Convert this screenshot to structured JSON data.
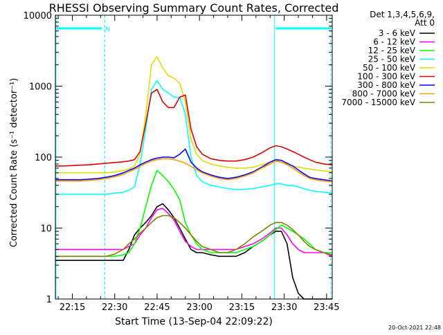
{
  "chart_data": {
    "type": "line",
    "title": "RHESSI Observing Summary Count Rates, Corrected",
    "xlabel": "Start Time (13-Sep-04 22:09:22)",
    "ylabel": "Corrected Count Rate (s⁻¹ detector⁻¹)",
    "y_scale": "log",
    "ylim": [
      1,
      10000
    ],
    "xlim": [
      "22:09",
      "23:47"
    ],
    "x_ticks": [
      "22:15",
      "22:30",
      "22:45",
      "23:00",
      "23:15",
      "23:30",
      "23:45"
    ],
    "y_ticks": [
      "1",
      "10",
      "100",
      "1000",
      "10000"
    ],
    "grid": false,
    "legend_header": [
      "Det 1,3,4,5,6,9,",
      "Att 0"
    ],
    "legend_position": "right",
    "footer_timestamp": "20-Oct-2021 22:48",
    "night_marker_label": "N",
    "x_minutes": [
      0,
      3,
      6,
      9,
      12,
      15,
      18,
      21,
      24,
      26,
      28,
      30,
      32,
      34,
      36,
      38,
      40,
      42,
      44,
      46,
      48,
      50,
      52,
      55,
      58,
      61,
      64,
      67,
      70,
      73,
      76,
      78,
      80,
      82,
      84,
      86,
      88,
      90,
      92,
      95,
      98
    ],
    "series": [
      {
        "name": "3 - 6 keV",
        "color": "#000000",
        "values": [
          3.5,
          3.5,
          3.5,
          3.5,
          3.5,
          3.5,
          3.5,
          3.5,
          3.5,
          5,
          8,
          10,
          12,
          15,
          20,
          22,
          18,
          14,
          10,
          7,
          5,
          4.5,
          4.5,
          4.2,
          4,
          4,
          4,
          4.5,
          5.5,
          6.5,
          8,
          9,
          9,
          6,
          2,
          1.2,
          1,
          1,
          1,
          1,
          1
        ]
      },
      {
        "name": "6 - 12 keV",
        "color": "#ff00ff",
        "values": [
          5,
          5,
          5,
          5,
          5,
          5,
          5,
          5,
          5,
          5.5,
          6,
          8,
          10,
          14,
          18,
          19,
          16,
          13,
          9,
          6.5,
          5.5,
          5,
          5,
          5,
          5,
          5,
          5,
          5.5,
          6,
          7,
          8.5,
          10,
          10,
          8,
          6,
          5,
          4.5,
          4.5,
          4.5,
          4.5,
          4
        ]
      },
      {
        "name": "12 - 25 keV",
        "color": "#00ff00",
        "values": [
          4,
          4,
          4,
          4,
          4,
          4,
          4,
          4,
          4.2,
          4.5,
          6,
          10,
          20,
          40,
          65,
          55,
          45,
          35,
          25,
          12,
          8,
          6,
          5,
          4.5,
          4.5,
          4.5,
          4.5,
          5,
          5.5,
          6.5,
          8,
          9.5,
          11,
          10,
          9,
          8,
          7,
          6,
          5,
          4.5,
          4.5
        ]
      },
      {
        "name": "25 - 50 keV",
        "color": "#00ffff",
        "values": [
          30,
          30,
          30,
          30,
          30,
          30,
          30,
          31,
          32,
          34,
          38,
          80,
          250,
          900,
          1200,
          900,
          800,
          700,
          700,
          400,
          100,
          55,
          45,
          40,
          38,
          36,
          35,
          35,
          36,
          38,
          40,
          42,
          42,
          40,
          40,
          38,
          36,
          34,
          33,
          32,
          31
        ]
      },
      {
        "name": "50 - 100 keV",
        "color": "#dddd00",
        "values": [
          60,
          60,
          60,
          60,
          60,
          60,
          60,
          62,
          65,
          68,
          75,
          110,
          400,
          2000,
          2600,
          1800,
          1400,
          1300,
          1100,
          600,
          180,
          110,
          90,
          80,
          75,
          72,
          70,
          70,
          72,
          78,
          85,
          88,
          85,
          80,
          75,
          72,
          70,
          68,
          66,
          64,
          62
        ]
      },
      {
        "name": "100 - 300 keV",
        "color": "#dd0000",
        "values": [
          75,
          75,
          76,
          77,
          78,
          80,
          82,
          84,
          86,
          88,
          92,
          120,
          300,
          800,
          900,
          600,
          500,
          500,
          700,
          750,
          250,
          140,
          110,
          95,
          90,
          88,
          88,
          92,
          100,
          115,
          135,
          145,
          140,
          130,
          120,
          110,
          100,
          92,
          85,
          80,
          78
        ]
      },
      {
        "name": "300 - 800 keV",
        "color": "#0000ff",
        "values": [
          48,
          48,
          48,
          48,
          49,
          50,
          52,
          55,
          60,
          65,
          70,
          78,
          85,
          92,
          97,
          100,
          100,
          98,
          110,
          130,
          85,
          70,
          62,
          56,
          52,
          50,
          52,
          56,
          62,
          72,
          85,
          92,
          90,
          82,
          75,
          66,
          58,
          52,
          50,
          48,
          46
        ]
      },
      {
        "name": "800 - 7000 keV",
        "color": "#ff9900",
        "values": [
          46,
          46,
          46,
          46,
          47,
          48,
          50,
          53,
          57,
          62,
          67,
          74,
          82,
          88,
          92,
          95,
          95,
          92,
          88,
          82,
          74,
          66,
          60,
          54,
          50,
          48,
          50,
          54,
          60,
          70,
          80,
          88,
          85,
          78,
          70,
          62,
          55,
          50,
          48,
          46,
          45
        ]
      },
      {
        "name": "7000 - 15000 keV",
        "color": "#808000",
        "values": [
          4,
          4,
          4,
          4,
          4,
          4,
          4,
          4.3,
          5,
          6,
          7,
          8.5,
          10,
          12,
          14,
          15,
          15,
          14,
          12,
          10,
          8,
          6.5,
          5.5,
          5,
          4.5,
          4.5,
          5,
          6,
          7.5,
          9,
          11,
          12,
          12,
          11,
          9.5,
          8,
          6.5,
          5.5,
          5,
          4.5,
          4.2
        ]
      }
    ]
  }
}
